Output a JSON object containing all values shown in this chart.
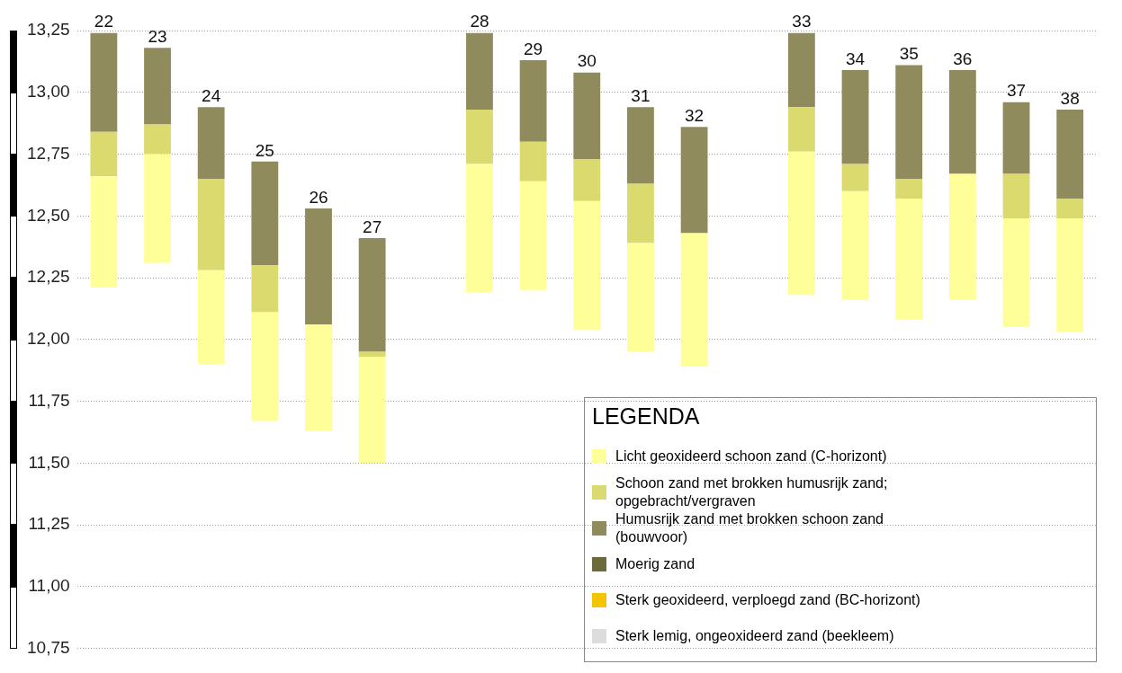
{
  "chart_data": {
    "type": "bar",
    "categories": [
      "22",
      "23",
      "24",
      "25",
      "26",
      "27",
      null,
      "28",
      "29",
      "30",
      "31",
      "32",
      null,
      "33",
      "34",
      "35",
      "36",
      "37",
      "38"
    ],
    "series": [
      {
        "name": "Licht geoxideerd schoon zand (C-horizont)",
        "color": "#ffff99",
        "base": [
          12.21,
          12.31,
          11.9,
          11.67,
          11.63,
          11.5,
          null,
          12.19,
          12.2,
          12.04,
          11.95,
          11.89,
          null,
          12.18,
          12.16,
          12.08,
          12.16,
          12.05,
          12.03
        ],
        "values": [
          0.45,
          0.44,
          0.38,
          0.44,
          0.43,
          0.43,
          null,
          0.52,
          0.44,
          0.52,
          0.44,
          0.54,
          null,
          0.58,
          0.44,
          0.49,
          0.51,
          0.44,
          0.46
        ]
      },
      {
        "name": "Schoon zand met brokken humusrijk zand; opgebracht/vergraven",
        "color": "#dada6e",
        "base": [
          12.66,
          12.75,
          12.28,
          12.11,
          null,
          11.93,
          null,
          12.71,
          12.64,
          12.56,
          12.39,
          null,
          null,
          12.76,
          12.6,
          12.57,
          null,
          12.49,
          12.49
        ],
        "values": [
          0.18,
          0.12,
          0.37,
          0.19,
          null,
          0.02,
          null,
          0.22,
          0.16,
          0.17,
          0.24,
          null,
          null,
          0.18,
          0.11,
          0.08,
          null,
          0.18,
          0.08
        ]
      },
      {
        "name": "Humusrijk zand met brokken schoon zand (bouwvoor)",
        "color": "#8f8b5c",
        "base": [
          12.84,
          12.87,
          12.65,
          12.3,
          12.06,
          11.95,
          null,
          12.93,
          12.8,
          12.73,
          12.63,
          12.43,
          null,
          12.94,
          12.71,
          12.65,
          12.67,
          12.67,
          12.57
        ],
        "values": [
          0.4,
          0.31,
          0.29,
          0.42,
          0.47,
          0.46,
          null,
          0.31,
          0.33,
          0.35,
          0.31,
          0.43,
          null,
          0.3,
          0.38,
          0.46,
          0.42,
          0.29,
          0.36
        ]
      },
      {
        "name": "Moerig zand",
        "color": "#6b6b3a",
        "values": [
          null,
          null,
          null,
          null,
          null,
          null,
          null,
          null,
          null,
          null,
          null,
          null,
          null,
          null,
          null,
          null,
          null,
          null,
          null
        ]
      },
      {
        "name": "Sterk geoxideerd, verploegd zand (BC-horizont)",
        "color": "#f5c400",
        "values": [
          null,
          null,
          null,
          null,
          null,
          null,
          null,
          null,
          null,
          null,
          null,
          null,
          null,
          null,
          null,
          null,
          null,
          null,
          null
        ]
      },
      {
        "name": "Sterk lemig, ongeoxideerd zand (beekleem)",
        "color": "#dcdcdc",
        "values": [
          null,
          null,
          null,
          null,
          null,
          null,
          null,
          null,
          null,
          null,
          null,
          null,
          null,
          null,
          null,
          null,
          null,
          null,
          null
        ]
      }
    ],
    "ylim": [
      10.75,
      13.25
    ],
    "yticks": [
      {
        "value": 10.75,
        "label": "10,75"
      },
      {
        "value": 11,
        "label": "11,00"
      },
      {
        "value": 11.25,
        "label": "11,25"
      },
      {
        "value": 11.5,
        "label": "11,50"
      },
      {
        "value": 11.75,
        "label": "11,75"
      },
      {
        "value": 12,
        "label": "12,00"
      },
      {
        "value": 12.25,
        "label": "12,25"
      },
      {
        "value": 12.5,
        "label": "12,50"
      },
      {
        "value": 12.75,
        "label": "12,75"
      },
      {
        "value": 13,
        "label": "13,00"
      },
      {
        "value": 13.25,
        "label": "13,25"
      }
    ],
    "grid": "y",
    "legend": "bottom right",
    "legend_title": "LEGENDA"
  }
}
